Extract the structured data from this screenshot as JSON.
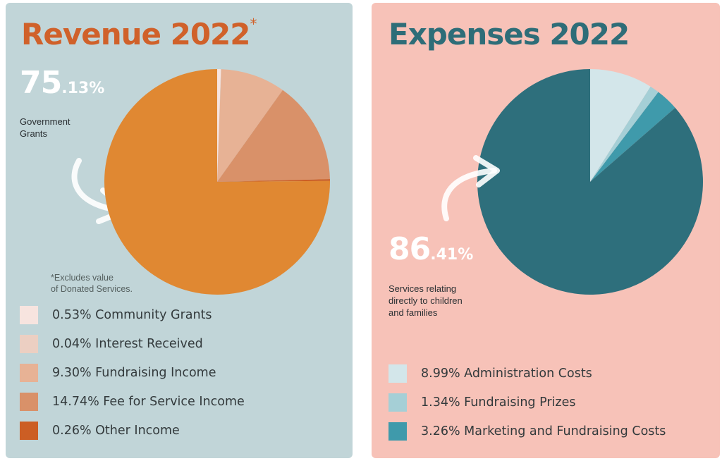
{
  "colors": {
    "revenue_panel_bg": "#c1d5d8",
    "expenses_panel_bg": "#f7c2b8",
    "revenue_title": "#d0612a",
    "expenses_title": "#2e6d78"
  },
  "revenue": {
    "title": "Revenue 2022",
    "title_mark": "*",
    "highlight_int": "75",
    "highlight_dec": ".13%",
    "highlight_label": "Government\nGrants",
    "footnote": "*Excludes value\nof Donated Services.",
    "legend": [
      {
        "label": "0.53% Community Grants",
        "color": "#f7e4df"
      },
      {
        "label": "0.04% Interest Received",
        "color": "#eccfc2"
      },
      {
        "label": "9.30% Fundraising Income",
        "color": "#e7b295"
      },
      {
        "label": "14.74% Fee for Service Income",
        "color": "#d99169"
      },
      {
        "label": "0.26% Other Income",
        "color": "#cc5e24"
      }
    ]
  },
  "expenses": {
    "title": "Expenses 2022",
    "highlight_int": "86",
    "highlight_dec": ".41%",
    "highlight_label": "Services relating\ndirectly to children\nand families",
    "legend": [
      {
        "label": "8.99% Administration Costs",
        "color": "#d3e6ea"
      },
      {
        "label": "1.34% Fundraising Prizes",
        "color": "#a5cfd6"
      },
      {
        "label": "3.26% Marketing and Fundraising Costs",
        "color": "#3f9aab"
      }
    ]
  },
  "chart_data": [
    {
      "type": "pie",
      "title": "Revenue 2022",
      "slices": [
        {
          "label": "Community Grants",
          "value": 0.53,
          "color": "#f7e4df"
        },
        {
          "label": "Interest Received",
          "value": 0.04,
          "color": "#eccfc2"
        },
        {
          "label": "Fundraising Income",
          "value": 9.3,
          "color": "#e7b295"
        },
        {
          "label": "Fee for Service Income",
          "value": 14.74,
          "color": "#d99169"
        },
        {
          "label": "Other Income",
          "value": 0.26,
          "color": "#cc5e24"
        },
        {
          "label": "Government Grants",
          "value": 75.13,
          "color": "#e08832"
        }
      ]
    },
    {
      "type": "pie",
      "title": "Expenses 2022",
      "slices": [
        {
          "label": "Administration Costs",
          "value": 8.99,
          "color": "#d3e6ea"
        },
        {
          "label": "Fundraising Prizes",
          "value": 1.34,
          "color": "#a5cfd6"
        },
        {
          "label": "Marketing and Fundraising Costs",
          "value": 3.26,
          "color": "#3f9aab"
        },
        {
          "label": "Services relating directly to children and families",
          "value": 86.41,
          "color": "#2e6f7c"
        }
      ]
    }
  ]
}
